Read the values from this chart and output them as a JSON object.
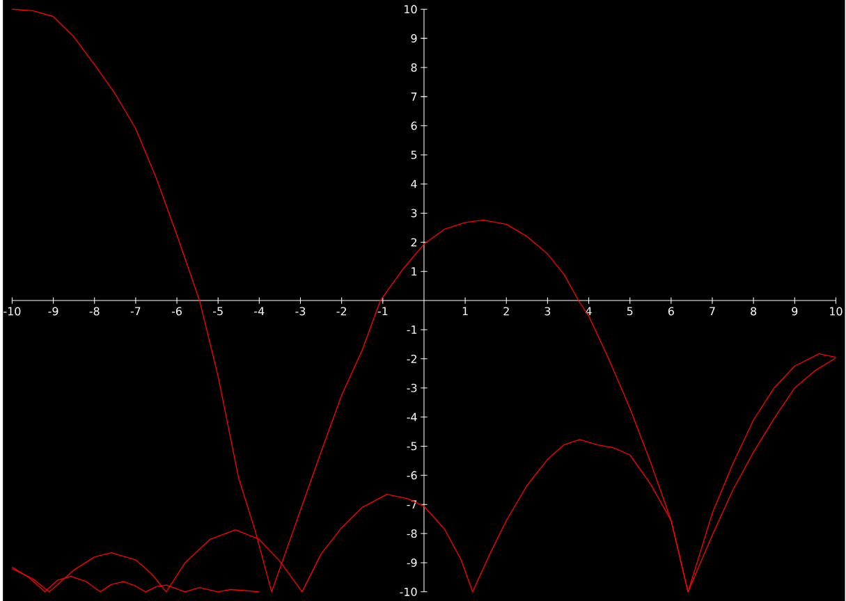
{
  "chart_data": {
    "type": "line",
    "xlim": [
      -10,
      10
    ],
    "ylim": [
      -10,
      10
    ],
    "xticks": [
      -10,
      -9,
      -8,
      -7,
      -6,
      -5,
      -4,
      -3,
      -2,
      -1,
      1,
      2,
      3,
      4,
      5,
      6,
      7,
      8,
      9,
      10
    ],
    "yticks": [
      -10,
      -9,
      -8,
      -7,
      -6,
      -5,
      -4,
      -3,
      -2,
      -1,
      1,
      2,
      3,
      4,
      5,
      6,
      7,
      8,
      9,
      10
    ],
    "marker": "none",
    "line_style": "solid",
    "series": [
      {
        "color": "#ff0000",
        "x": [
          -10,
          -9.5,
          -9,
          -8.5,
          -8,
          -7.5,
          -7,
          -6.5,
          -6,
          -5.45,
          -5,
          -4.5,
          -4.1,
          -3.7,
          -3,
          -2.5,
          -2,
          -1.5,
          -1.06,
          -0.5,
          0,
          0.5,
          1,
          1.44,
          2,
          2.5,
          3,
          3.4,
          3.75,
          4,
          4.5,
          5,
          5.5,
          6,
          6.41,
          7,
          7.5,
          8,
          8.5,
          9,
          9.59,
          10
        ],
        "values": [
          10,
          9.95,
          9.75,
          9.05,
          8.1,
          7.1,
          5.9,
          4.2,
          2.25,
          0,
          -2.6,
          -6.1,
          -7.9,
          -10,
          -7.2,
          -5.2,
          -3.25,
          -1.7,
          0,
          1.1,
          1.94,
          2.45,
          2.68,
          2.76,
          2.62,
          2.2,
          1.6,
          0.9,
          0,
          -0.53,
          -2.05,
          -3.7,
          -5.55,
          -7.55,
          -10,
          -7.3,
          -5.6,
          -4.1,
          -3,
          -2.25,
          -1.83,
          -1.95
        ]
      },
      {
        "color": "#ff0000",
        "x": [
          -10,
          -9.5,
          -9.1,
          -8.5,
          -8,
          -7.59,
          -7,
          -6.6,
          -6.26,
          -5.8,
          -5.2,
          -4.58,
          -4,
          -3.5,
          -2.96,
          -2.5,
          -2,
          -1.5,
          -0.9,
          -0.4,
          0,
          0.5,
          0.9,
          1.18,
          1.6,
          2,
          2.5,
          3,
          3.4,
          3.78,
          4.2,
          4.6,
          5,
          5.5,
          6,
          6.41,
          7,
          7.5,
          8,
          8.5,
          9,
          9.5,
          10
        ],
        "values": [
          -9.2,
          -9.55,
          -10,
          -9.25,
          -8.8,
          -8.66,
          -8.9,
          -9.4,
          -10,
          -9,
          -8.2,
          -7.87,
          -8.2,
          -8.95,
          -10,
          -8.7,
          -7.8,
          -7.1,
          -6.65,
          -6.8,
          -7.06,
          -7.85,
          -8.9,
          -10,
          -8.7,
          -7.55,
          -6.35,
          -5.45,
          -4.95,
          -4.77,
          -4.95,
          -5.05,
          -5.3,
          -6.3,
          -7.55,
          -10,
          -8.05,
          -6.5,
          -5.2,
          -4.05,
          -3,
          -2.4,
          -1.97
        ]
      },
      {
        "color": "#ff0000",
        "x": [
          -10,
          -9.6,
          -9.2,
          -8.9,
          -8.57,
          -8.2,
          -7.86,
          -7.6,
          -7.3,
          -7,
          -6.76,
          -6.5,
          -6.26,
          -6.0,
          -5.8,
          -5.45,
          -5.0,
          -4.7,
          -4.4,
          -4.0
        ],
        "values": [
          -9.15,
          -9.5,
          -10,
          -9.6,
          -9.47,
          -9.65,
          -10,
          -9.75,
          -9.65,
          -9.8,
          -10,
          -9.82,
          -9.77,
          -9.9,
          -10,
          -9.85,
          -10,
          -9.92,
          -9.95,
          -10
        ]
      }
    ]
  }
}
